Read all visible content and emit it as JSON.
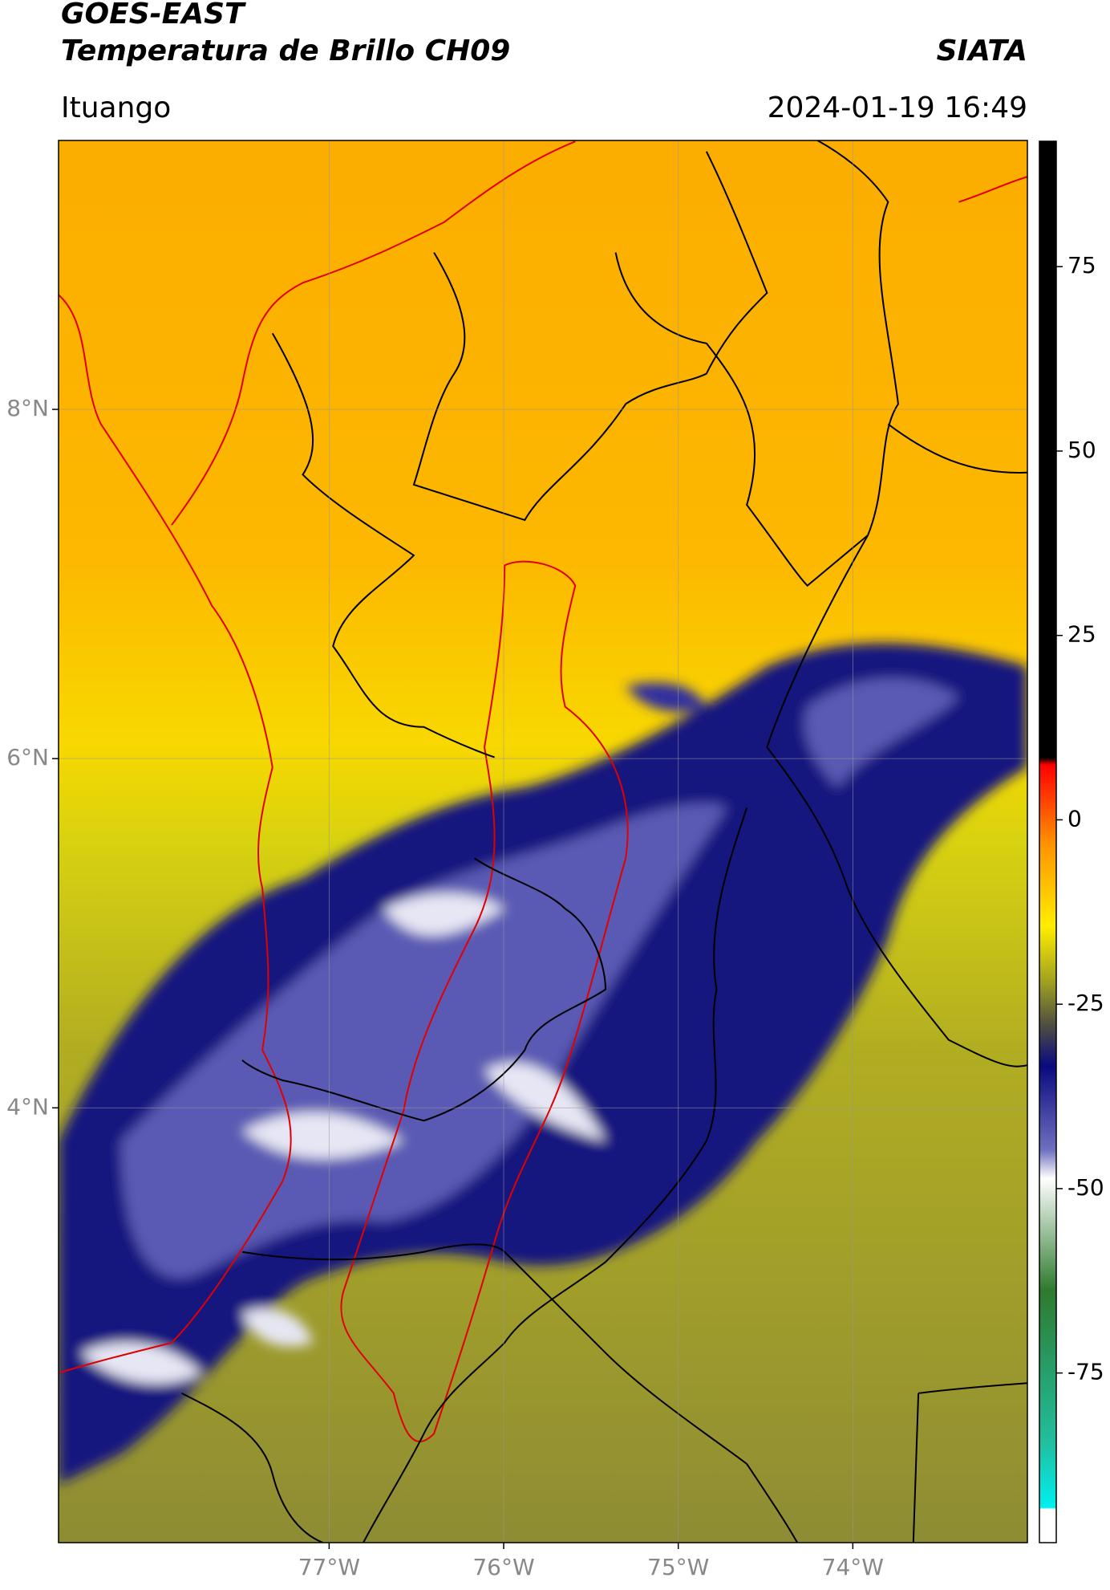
{
  "header": {
    "title": "GOES-EAST",
    "subtitle": "Temperatura de Brillo CH09",
    "brand": "SIATA",
    "location": "Ituango",
    "datetime": "2024-01-19 16:49"
  },
  "map": {
    "xlim": [
      -78.55,
      -73.0
    ],
    "ylim": [
      1.51,
      9.54
    ],
    "xticks": [
      {
        "value": -77,
        "label": "77°W"
      },
      {
        "value": -76,
        "label": "76°W"
      },
      {
        "value": -75,
        "label": "75°W"
      },
      {
        "value": -74,
        "label": "74°W"
      }
    ],
    "yticks": [
      {
        "value": 8,
        "label": "8°N"
      },
      {
        "value": 6,
        "label": "6°N"
      },
      {
        "value": 4,
        "label": "4°N"
      }
    ],
    "grid": true
  },
  "colorbar": {
    "lim": [
      -98,
      92
    ],
    "ticks": [
      75,
      50,
      25,
      0,
      -25,
      -50,
      -75
    ]
  }
}
